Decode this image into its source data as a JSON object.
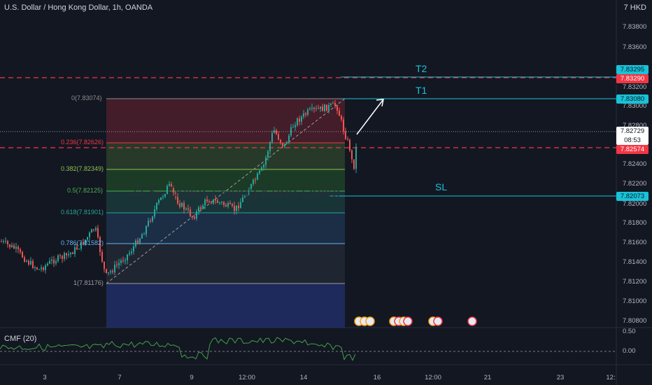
{
  "header": {
    "title": "U.S. Dollar / Hong Kong Dollar, 1h, OANDA",
    "currency": "7 HKD"
  },
  "price_axis": {
    "ticks": [
      "7.83800",
      "7.83600",
      "7.83400",
      "7.83200",
      "7.83000",
      "7.82800",
      "7.82600",
      "7.82400",
      "7.82200",
      "7.82000",
      "7.81800",
      "7.81600",
      "7.81400",
      "7.81200",
      "7.81000",
      "7.80800"
    ],
    "labels": {
      "t2": "7.83295",
      "red_top": "7.83290",
      "t1": "7.83080",
      "current_price": "7.82729",
      "countdown": "08:53",
      "red_mid": "7.82574",
      "sl": "7.82073"
    },
    "colors": {
      "cyan": "#18c2d8",
      "red": "#f23645",
      "bull": "#26a69a",
      "bear": "#ef5350"
    }
  },
  "fib_levels": [
    {
      "label": "0(7.83074)",
      "color": "#8f8f8f"
    },
    {
      "label": "0.236(7.82626)",
      "color": "#f23645"
    },
    {
      "label": "0.382(7.82349)",
      "color": "#8bc34a"
    },
    {
      "label": "0.5(7.82125)",
      "color": "#4caf50"
    },
    {
      "label": "0.618(7.81901)",
      "color": "#26a69a"
    },
    {
      "label": "0.786(7.81582)",
      "color": "#64b5f6"
    },
    {
      "label": "1(7.81176)",
      "color": "#9e9e9e"
    }
  ],
  "annotations": {
    "t2": "T2",
    "t1": "T1",
    "sl": "SL"
  },
  "watermark": "U.S. Dollar / Hong Kong Dollar",
  "cmf": {
    "label": "CMF (20)",
    "ticks": [
      "0.50",
      "0.00"
    ]
  },
  "time_axis": [
    "3",
    "7",
    "9",
    "12:00",
    "14",
    "16",
    "12:00",
    "21",
    "23",
    "12:"
  ]
}
